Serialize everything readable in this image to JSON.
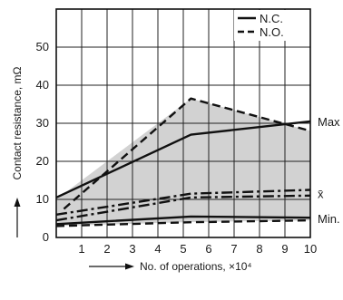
{
  "chart_data": {
    "type": "line",
    "xlabel": "No. of operations, ×10⁴",
    "ylabel": "Contact resistance, mΩ",
    "x_ticks": [
      1,
      2,
      3,
      4,
      5,
      6,
      7,
      8,
      9,
      10
    ],
    "y_ticks": [
      0,
      10,
      20,
      30,
      40,
      50
    ],
    "xlim": [
      0,
      10
    ],
    "ylim": [
      0,
      60
    ],
    "grid": true,
    "legend_position": "top-right",
    "legend": [
      {
        "label": "N.C.",
        "style": "solid"
      },
      {
        "label": "N.O.",
        "style": "dashed"
      }
    ],
    "band": {
      "upper": [
        [
          0,
          10
        ],
        [
          5.3,
          36.5
        ],
        [
          10,
          28
        ]
      ],
      "lower": [
        [
          0,
          3
        ],
        [
          5,
          4
        ],
        [
          10,
          4.5
        ]
      ],
      "color": "#d2d2d2"
    },
    "series": [
      {
        "group": "Max",
        "type": "N.C.",
        "style": "solid",
        "points": [
          [
            0,
            10.5
          ],
          [
            5.3,
            27
          ],
          [
            10,
            30.5
          ]
        ]
      },
      {
        "group": "Max",
        "type": "N.O.",
        "style": "dashed",
        "points": [
          [
            0.3,
            7.5
          ],
          [
            5.3,
            36.5
          ],
          [
            10,
            28
          ]
        ]
      },
      {
        "group": "x̄",
        "type": "N.C.",
        "style": "dashdot",
        "points": [
          [
            0,
            4.5
          ],
          [
            5.3,
            10.5
          ],
          [
            10,
            11
          ]
        ]
      },
      {
        "group": "x̄",
        "type": "N.O.",
        "style": "dashdot",
        "points": [
          [
            0,
            6
          ],
          [
            5.3,
            11.5
          ],
          [
            10,
            12.5
          ]
        ]
      },
      {
        "group": "Min.",
        "type": "N.C.",
        "style": "solid",
        "points": [
          [
            0,
            3.5
          ],
          [
            5.3,
            5.5
          ],
          [
            10,
            5.2
          ]
        ]
      },
      {
        "group": "Min.",
        "type": "N.O.",
        "style": "dashed",
        "points": [
          [
            0,
            3
          ],
          [
            5.3,
            4
          ],
          [
            10,
            4.5
          ]
        ]
      }
    ],
    "annotations": [
      {
        "text": "Max",
        "y": 30.5
      },
      {
        "text": "x̄",
        "y": 11.5
      },
      {
        "text": "Min.",
        "y": 5
      }
    ]
  }
}
